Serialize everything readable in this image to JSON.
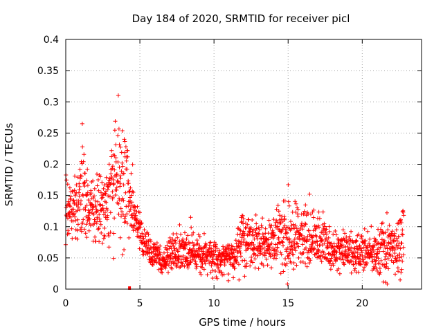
{
  "chart_data": {
    "type": "scatter",
    "title": "Day 184 of 2020, SRMTID for receiver picl",
    "xlabel": "GPS time / hours",
    "ylabel": "SRMTID / TECUs",
    "xlim": [
      0,
      24
    ],
    "ylim": [
      0,
      0.4
    ],
    "x_ticks": [
      0,
      5,
      10,
      15,
      20
    ],
    "y_ticks": [
      0,
      0.05,
      0.1,
      0.15,
      0.2,
      0.25,
      0.3,
      0.35,
      0.4
    ],
    "x_tick_labels": [
      "0",
      "5",
      "10",
      "15",
      "20"
    ],
    "y_tick_labels": [
      "0",
      "0.05",
      "0.1",
      "0.15",
      "0.2",
      "0.25",
      "0.3",
      "0.35",
      "0.4"
    ],
    "grid": true,
    "marker": "+",
    "color": "#ff0000",
    "series": [
      {
        "name": "SRMTID",
        "profile": {
          "hours": [
            0.0,
            0.3,
            0.6,
            1.0,
            1.3,
            1.6,
            2.0,
            2.5,
            3.0,
            3.3,
            3.7,
            4.0,
            4.3,
            4.6,
            4.9,
            5.2,
            5.6,
            6.0,
            6.5,
            7.0,
            7.5,
            8.0,
            8.5,
            9.0,
            9.5,
            10.0,
            10.5,
            11.0,
            11.5,
            12.0,
            12.5,
            13.0,
            13.5,
            14.0,
            14.5,
            15.0,
            15.5,
            16.0,
            16.5,
            17.0,
            17.5,
            18.0,
            18.5,
            19.0,
            19.5,
            20.0,
            20.5,
            21.0,
            21.5,
            22.0,
            22.5,
            22.8
          ],
          "mean": [
            0.125,
            0.12,
            0.13,
            0.16,
            0.14,
            0.13,
            0.12,
            0.13,
            0.15,
            0.17,
            0.16,
            0.17,
            0.15,
            0.12,
            0.1,
            0.075,
            0.065,
            0.055,
            0.045,
            0.055,
            0.06,
            0.058,
            0.055,
            0.05,
            0.052,
            0.048,
            0.05,
            0.052,
            0.055,
            0.08,
            0.075,
            0.07,
            0.068,
            0.075,
            0.078,
            0.08,
            0.082,
            0.085,
            0.08,
            0.078,
            0.07,
            0.055,
            0.06,
            0.06,
            0.058,
            0.06,
            0.058,
            0.055,
            0.06,
            0.062,
            0.07,
            0.08
          ],
          "spread": [
            0.07,
            0.07,
            0.08,
            0.14,
            0.12,
            0.08,
            0.08,
            0.09,
            0.12,
            0.2,
            0.14,
            0.16,
            0.1,
            0.06,
            0.05,
            0.04,
            0.035,
            0.035,
            0.03,
            0.035,
            0.045,
            0.04,
            0.045,
            0.04,
            0.04,
            0.04,
            0.04,
            0.04,
            0.04,
            0.09,
            0.05,
            0.05,
            0.05,
            0.06,
            0.09,
            0.09,
            0.07,
            0.08,
            0.07,
            0.06,
            0.05,
            0.045,
            0.05,
            0.05,
            0.045,
            0.045,
            0.045,
            0.045,
            0.09,
            0.06,
            0.08,
            0.08
          ]
        }
      }
    ],
    "outlier_points": [
      {
        "x": 4.3,
        "y": 0.0
      }
    ]
  }
}
